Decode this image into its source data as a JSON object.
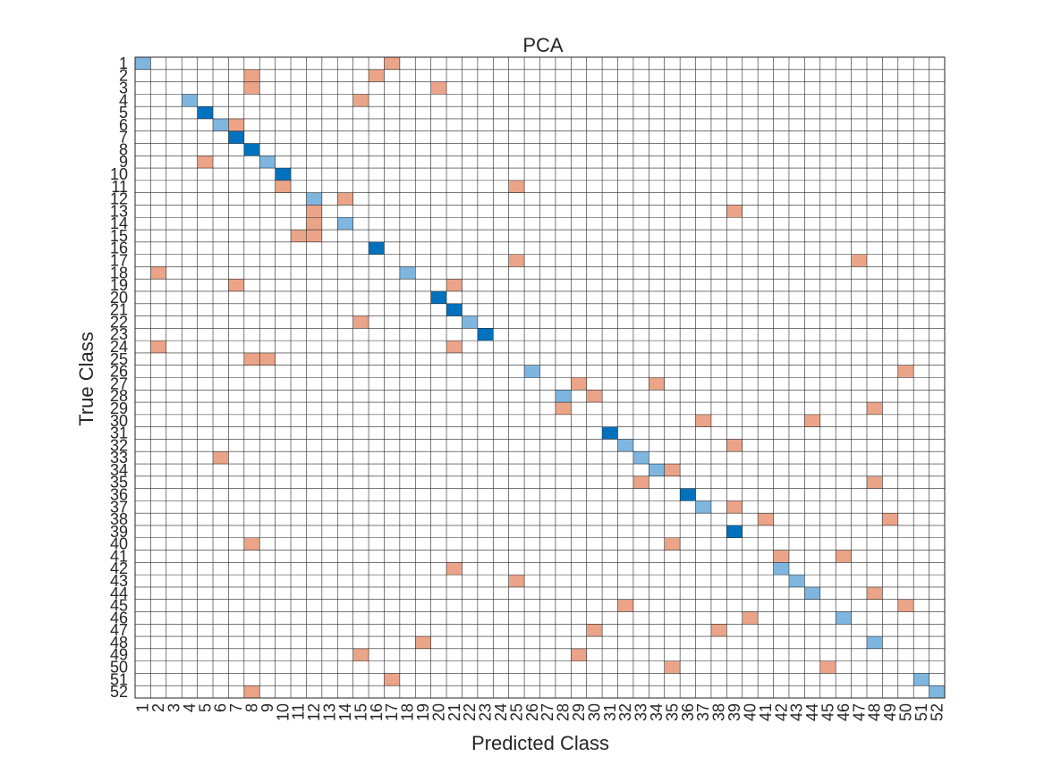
{
  "chart_data": {
    "type": "heatmap",
    "title": "PCA",
    "xlabel": "Predicted Class",
    "ylabel": "True Class",
    "classes": [
      "1",
      "2",
      "3",
      "4",
      "5",
      "6",
      "7",
      "8",
      "9",
      "10",
      "11",
      "12",
      "13",
      "14",
      "15",
      "16",
      "17",
      "18",
      "19",
      "20",
      "21",
      "22",
      "23",
      "24",
      "25",
      "26",
      "27",
      "28",
      "29",
      "30",
      "31",
      "32",
      "33",
      "34",
      "35",
      "36",
      "37",
      "38",
      "39",
      "40",
      "41",
      "42",
      "43",
      "44",
      "45",
      "46",
      "47",
      "48",
      "49",
      "50",
      "51",
      "52"
    ],
    "grid": true,
    "colors": {
      "diagonal_strong": "#0072BD",
      "diagonal_light": "#7EB6E0",
      "off_diagonal": "#EBA488",
      "grid_line": "#262626"
    },
    "diagonal_strong": [
      5,
      7,
      8,
      10,
      16,
      20,
      21,
      23,
      31,
      36,
      39
    ],
    "diagonal_light": [
      1,
      4,
      6,
      9,
      12,
      14,
      18,
      22,
      26,
      28,
      32,
      33,
      34,
      37,
      42,
      43,
      44,
      46,
      48,
      51,
      52
    ],
    "off_diagonal": [
      [
        1,
        17
      ],
      [
        2,
        8
      ],
      [
        2,
        16
      ],
      [
        3,
        8
      ],
      [
        3,
        20
      ],
      [
        4,
        15
      ],
      [
        6,
        7
      ],
      [
        9,
        5
      ],
      [
        11,
        10
      ],
      [
        11,
        25
      ],
      [
        12,
        14
      ],
      [
        13,
        12
      ],
      [
        13,
        39
      ],
      [
        14,
        12
      ],
      [
        15,
        11
      ],
      [
        15,
        12
      ],
      [
        17,
        25
      ],
      [
        17,
        47
      ],
      [
        18,
        2
      ],
      [
        19,
        7
      ],
      [
        19,
        21
      ],
      [
        22,
        15
      ],
      [
        24,
        2
      ],
      [
        24,
        21
      ],
      [
        25,
        8
      ],
      [
        25,
        9
      ],
      [
        26,
        50
      ],
      [
        27,
        29
      ],
      [
        27,
        34
      ],
      [
        28,
        30
      ],
      [
        29,
        28
      ],
      [
        29,
        48
      ],
      [
        30,
        37
      ],
      [
        30,
        44
      ],
      [
        32,
        39
      ],
      [
        33,
        6
      ],
      [
        34,
        35
      ],
      [
        35,
        33
      ],
      [
        35,
        48
      ],
      [
        37,
        39
      ],
      [
        38,
        41
      ],
      [
        38,
        49
      ],
      [
        40,
        8
      ],
      [
        40,
        35
      ],
      [
        41,
        42
      ],
      [
        41,
        46
      ],
      [
        42,
        21
      ],
      [
        43,
        25
      ],
      [
        44,
        48
      ],
      [
        45,
        32
      ],
      [
        45,
        50
      ],
      [
        46,
        40
      ],
      [
        47,
        30
      ],
      [
        47,
        38
      ],
      [
        48,
        19
      ],
      [
        49,
        15
      ],
      [
        49,
        29
      ],
      [
        50,
        35
      ],
      [
        50,
        45
      ],
      [
        51,
        17
      ],
      [
        52,
        8
      ]
    ]
  }
}
